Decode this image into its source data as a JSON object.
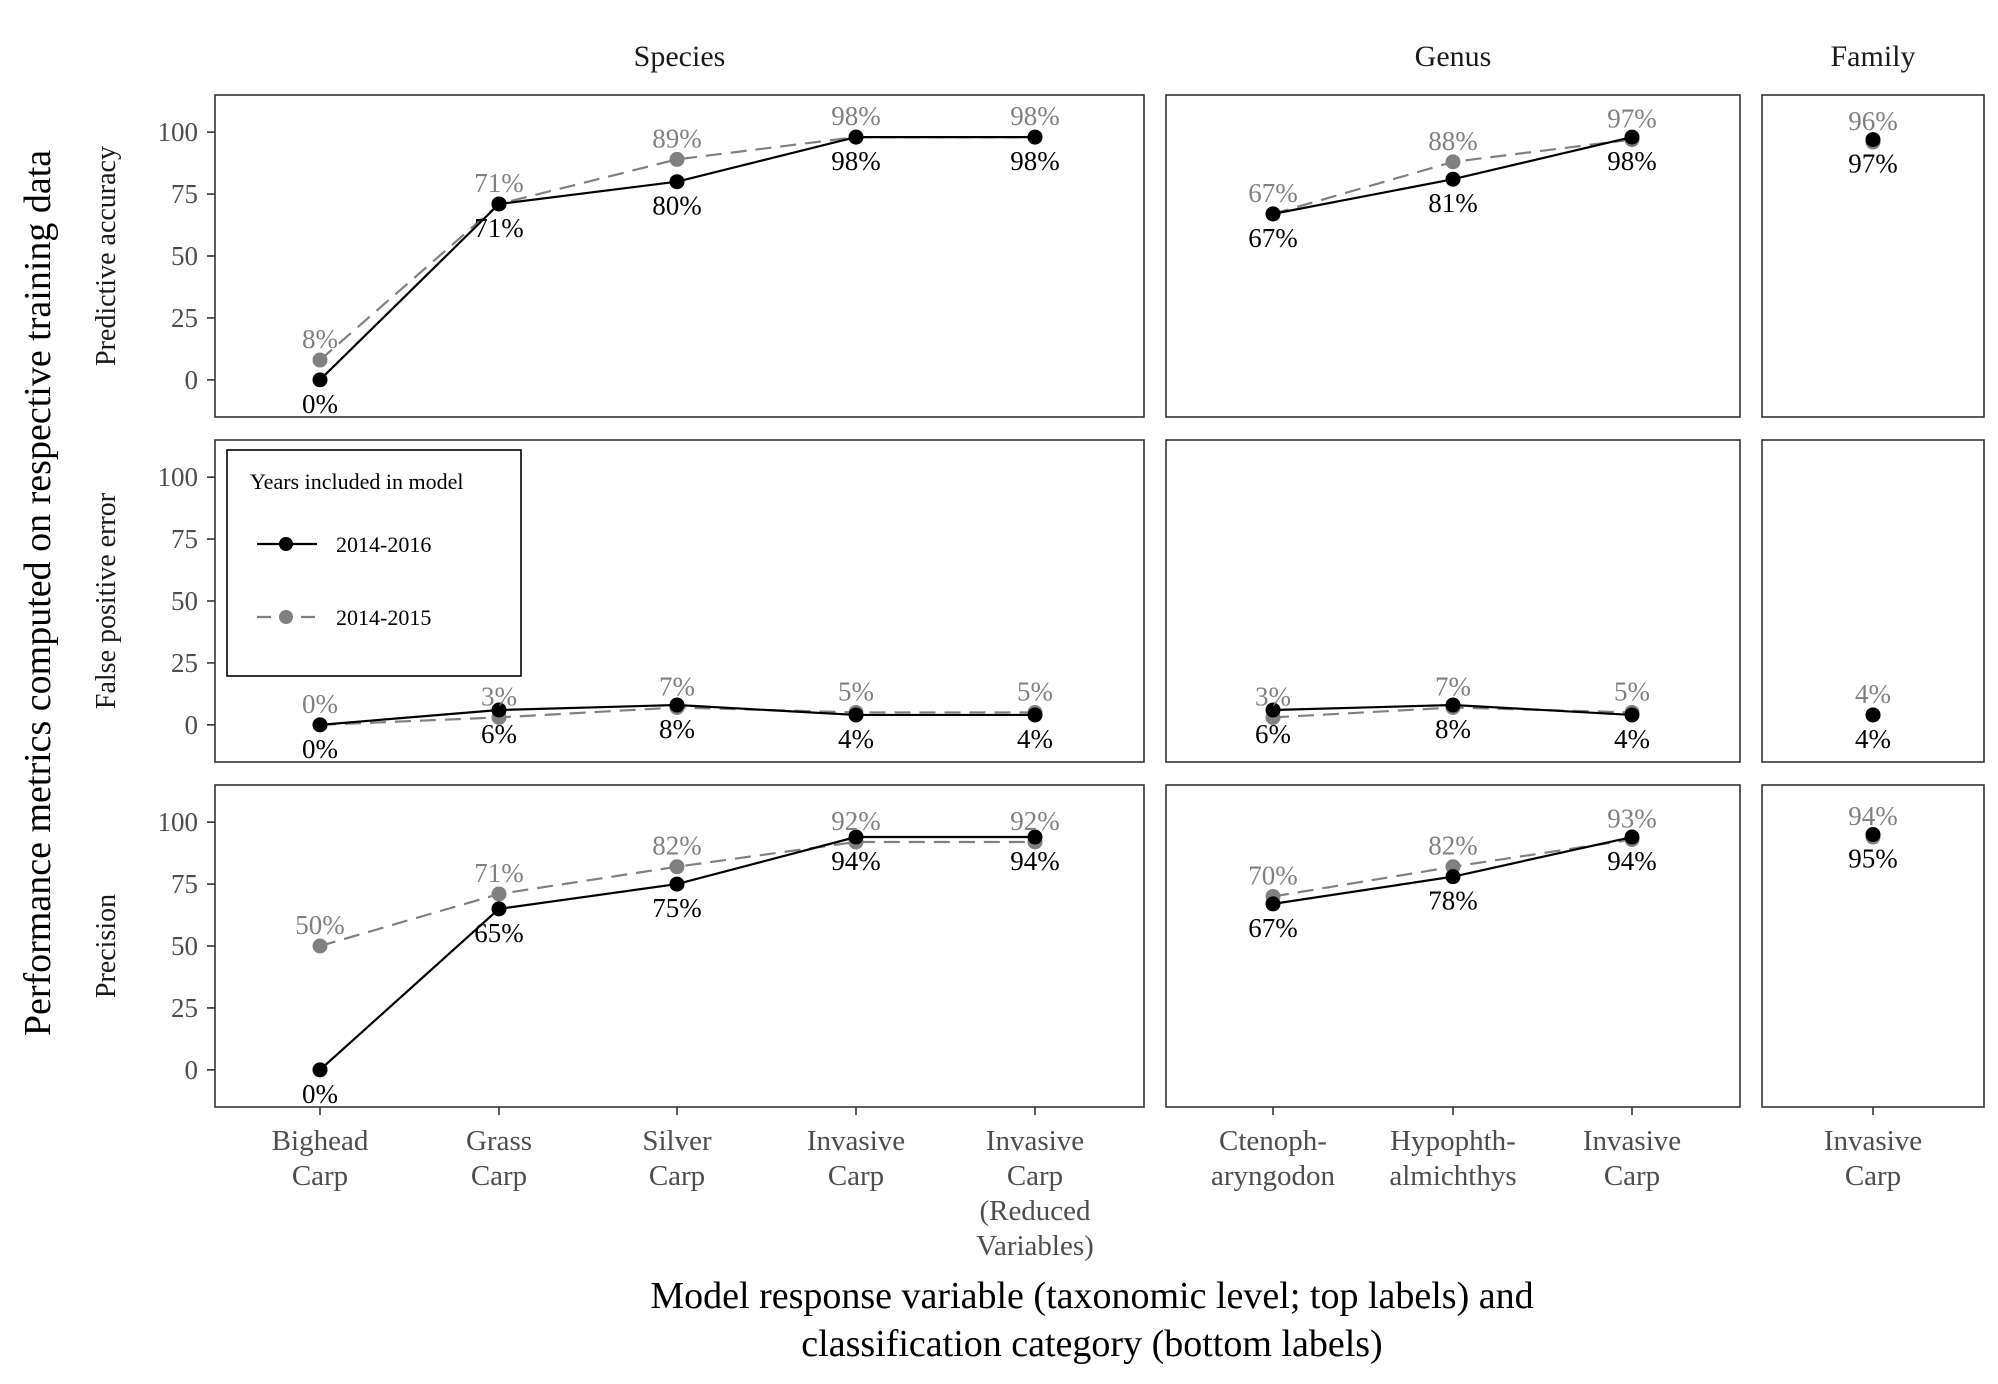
{
  "chart_data": {
    "type": "line",
    "y_axis_title": "Performance metrics computed on respective training data",
    "x_axis_title_lines": [
      "Model response variable (taxonomic level; top labels) and",
      "classification category (bottom labels)"
    ],
    "columns": [
      {
        "name": "Species",
        "categories": [
          [
            "Bighead",
            "Carp"
          ],
          [
            "Grass",
            "Carp"
          ],
          [
            "Silver",
            "Carp"
          ],
          [
            "Invasive",
            "Carp"
          ],
          [
            "Invasive",
            "Carp",
            "(Reduced",
            "Variables)"
          ]
        ]
      },
      {
        "name": "Genus",
        "categories": [
          [
            "Ctenoph-",
            "aryngodon"
          ],
          [
            "Hypophth-",
            "almichthys"
          ],
          [
            "Invasive",
            "Carp"
          ]
        ]
      },
      {
        "name": "Family",
        "categories": [
          [
            "Invasive",
            "Carp"
          ]
        ]
      }
    ],
    "rows": [
      "Predictive accuracy",
      "False positive error",
      "Precision"
    ],
    "ylim": [
      -15,
      115
    ],
    "yticks": [
      0,
      25,
      50,
      75,
      100
    ],
    "legend": {
      "title": "Years included in model",
      "position": "inside-left"
    },
    "series": [
      {
        "name": "2014-2016",
        "color": "#000000",
        "dash": "solid",
        "values": {
          "Predictive accuracy": {
            "Species": [
              0,
              71,
              80,
              98,
              98
            ],
            "Genus": [
              67,
              81,
              98
            ],
            "Family": [
              97
            ]
          },
          "False positive error": {
            "Species": [
              0,
              6,
              8,
              4,
              4
            ],
            "Genus": [
              6,
              8,
              4
            ],
            "Family": [
              4
            ]
          },
          "Precision": {
            "Species": [
              0,
              65,
              75,
              94,
              94
            ],
            "Genus": [
              67,
              78,
              94
            ],
            "Family": [
              95
            ]
          }
        }
      },
      {
        "name": "2014-2015",
        "color": "#808080",
        "dash": "dashed",
        "values": {
          "Predictive accuracy": {
            "Species": [
              8,
              71,
              89,
              98,
              98
            ],
            "Genus": [
              67,
              88,
              97
            ],
            "Family": [
              96
            ]
          },
          "False positive error": {
            "Species": [
              0,
              3,
              7,
              5,
              5
            ],
            "Genus": [
              3,
              7,
              5
            ],
            "Family": [
              4
            ]
          },
          "Precision": {
            "Species": [
              50,
              71,
              82,
              92,
              92
            ],
            "Genus": [
              70,
              82,
              93
            ],
            "Family": [
              94
            ]
          }
        }
      }
    ]
  }
}
